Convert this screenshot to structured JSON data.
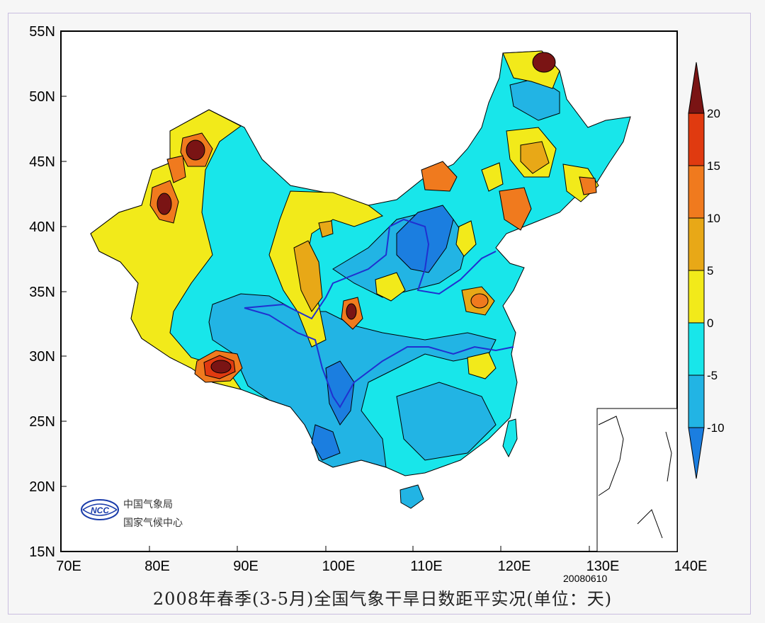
{
  "title": "2008年春季(3-5月)全国气象干旱日数距平实况(单位：天)",
  "date_stamp": "20080610",
  "logo": {
    "line1": "中国气象局",
    "line2": "国家气候中心",
    "emblem_text": "NCC"
  },
  "axes": {
    "lon_labels": [
      "70E",
      "80E",
      "90E",
      "100E",
      "110E",
      "120E",
      "130E",
      "140E"
    ],
    "lat_labels": [
      "55N",
      "50N",
      "45N",
      "40N",
      "35N",
      "30N",
      "25N",
      "20N",
      "15N"
    ]
  },
  "colorbar": {
    "labels": [
      "20",
      "15",
      "10",
      "5",
      "0",
      "-5",
      "-10"
    ],
    "colors": [
      "#7a1414",
      "#e03a10",
      "#f07a1e",
      "#e8a817",
      "#f2ea1a",
      "#18e6ea",
      "#22b4e4",
      "#1b7ee0"
    ]
  },
  "colors": {
    "yellow": "#f2ea1a",
    "cyan": "#18e6ea",
    "light_blue": "#22b4e4",
    "blue": "#1b7ee0",
    "gold": "#e8a817",
    "orange": "#f07a1e",
    "red": "#e03a10",
    "dark_red": "#7a1414",
    "river": "#2030d0"
  }
}
